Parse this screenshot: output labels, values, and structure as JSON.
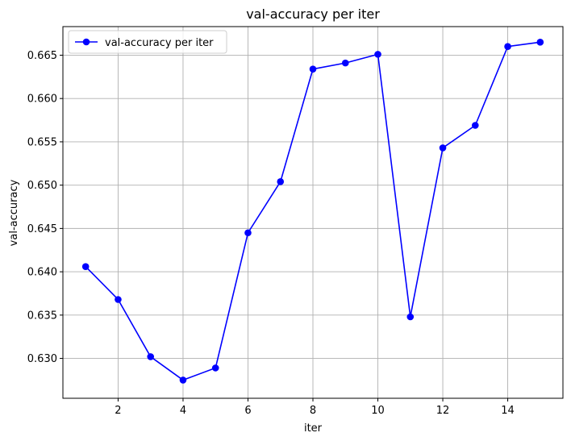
{
  "chart_data": {
    "type": "line",
    "title": "val-accuracy per iter",
    "xlabel": "iter",
    "ylabel": "val-accuracy",
    "xlim": [
      0.3,
      15.7
    ],
    "ylim": [
      0.6254,
      0.6683
    ],
    "xticks": [
      2,
      4,
      6,
      8,
      10,
      12,
      14
    ],
    "xtick_labels": [
      "2",
      "4",
      "6",
      "8",
      "10",
      "12",
      "14"
    ],
    "yticks": [
      0.63,
      0.635,
      0.64,
      0.645,
      0.65,
      0.655,
      0.66,
      0.665
    ],
    "ytick_labels": [
      "0.630",
      "0.635",
      "0.640",
      "0.645",
      "0.650",
      "0.655",
      "0.660",
      "0.665"
    ],
    "grid": true,
    "legend_position": "top-left",
    "series": [
      {
        "name": "val-accuracy per iter",
        "color": "#0000ff",
        "marker": "circle",
        "x": [
          1,
          2,
          3,
          4,
          5,
          6,
          7,
          8,
          9,
          10,
          11,
          12,
          13,
          14,
          15
        ],
        "y": [
          0.6406,
          0.6368,
          0.6302,
          0.6275,
          0.6289,
          0.6445,
          0.6504,
          0.6634,
          0.6641,
          0.6651,
          0.6348,
          0.6543,
          0.6569,
          0.666,
          0.6665
        ]
      }
    ]
  }
}
